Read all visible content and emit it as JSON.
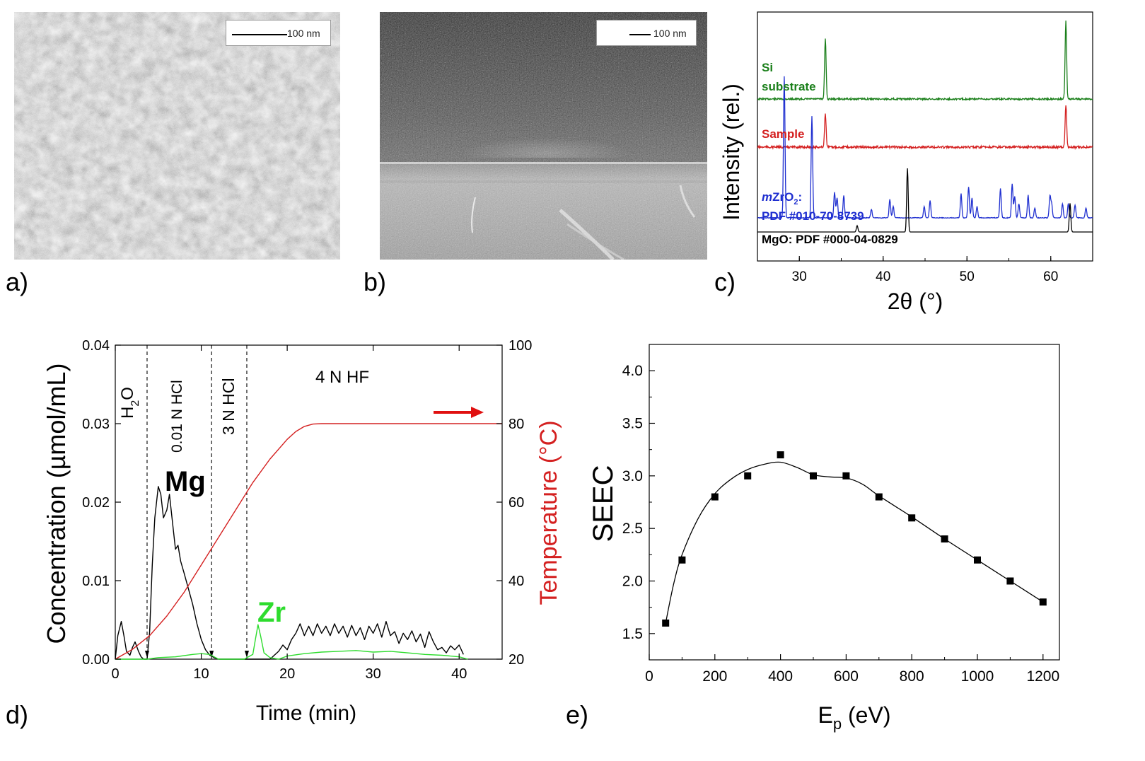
{
  "panels": {
    "a": {
      "label": "a)",
      "scale_bar": "100 nm"
    },
    "b": {
      "label": "b)",
      "scale_bar": "100 nm"
    },
    "c": {
      "label": "c)"
    },
    "d": {
      "label": "d)"
    },
    "e": {
      "label": "e)"
    }
  },
  "colors": {
    "green": "#1a7f1a",
    "red": "#d42020",
    "blue": "#1f2fd0",
    "black": "#000000",
    "zr_green": "#2edc2e"
  },
  "chart_data": [
    {
      "id": "xrd",
      "type": "line",
      "xlabel": "2θ (°)",
      "ylabel": "Intensity (rel.)",
      "xlim": [
        25,
        65
      ],
      "xticks": [
        30,
        40,
        50,
        60
      ],
      "series": [
        {
          "name": "Si substrate",
          "label_lines": [
            "Si",
            "substrate"
          ],
          "color": "#1a7f1a",
          "peaks": [
            {
              "x": 33.1,
              "h": 0.78
            },
            {
              "x": 61.8,
              "h": 1.0
            }
          ]
        },
        {
          "name": "Sample",
          "label_lines": [
            "Sample"
          ],
          "color": "#d42020",
          "peaks": [
            {
              "x": 33.1,
              "h": 0.6
            },
            {
              "x": 61.8,
              "h": 0.75
            }
          ]
        },
        {
          "name": "mZrO2: PDF #010-70-8739",
          "label_lines": [
            "mZrO2:",
            "PDF #010-70-8739"
          ],
          "color": "#1f2fd0",
          "peaks": [
            {
              "x": 28.2,
              "h": 1.0
            },
            {
              "x": 31.5,
              "h": 0.72
            },
            {
              "x": 34.2,
              "h": 0.18
            },
            {
              "x": 34.5,
              "h": 0.14
            },
            {
              "x": 35.3,
              "h": 0.16
            },
            {
              "x": 38.6,
              "h": 0.06
            },
            {
              "x": 40.8,
              "h": 0.13
            },
            {
              "x": 41.2,
              "h": 0.08
            },
            {
              "x": 44.9,
              "h": 0.08
            },
            {
              "x": 45.6,
              "h": 0.12
            },
            {
              "x": 49.3,
              "h": 0.17
            },
            {
              "x": 50.2,
              "h": 0.22
            },
            {
              "x": 50.6,
              "h": 0.14
            },
            {
              "x": 51.2,
              "h": 0.08
            },
            {
              "x": 54.0,
              "h": 0.21
            },
            {
              "x": 55.4,
              "h": 0.24
            },
            {
              "x": 55.7,
              "h": 0.15
            },
            {
              "x": 56.2,
              "h": 0.1
            },
            {
              "x": 57.3,
              "h": 0.16
            },
            {
              "x": 58.1,
              "h": 0.07
            },
            {
              "x": 59.9,
              "h": 0.15
            },
            {
              "x": 60.1,
              "h": 0.1
            },
            {
              "x": 61.4,
              "h": 0.1
            },
            {
              "x": 62.1,
              "h": 0.1
            },
            {
              "x": 62.9,
              "h": 0.09
            },
            {
              "x": 64.2,
              "h": 0.07
            }
          ]
        },
        {
          "name": "MgO: PDF #000-04-0829",
          "label_lines": [
            "MgO: PDF #000-04-0829"
          ],
          "color": "#000000",
          "peaks": [
            {
              "x": 36.9,
              "h": 0.1
            },
            {
              "x": 42.9,
              "h": 1.0
            },
            {
              "x": 62.3,
              "h": 0.45
            }
          ]
        }
      ]
    },
    {
      "id": "elution",
      "type": "line",
      "xlabel": "Time (min)",
      "ylabel": "Concentration (µmol/mL)",
      "y2label": "Temperature (°C)",
      "xlim": [
        0,
        45
      ],
      "ylim": [
        0,
        0.04
      ],
      "y2lim": [
        20,
        100
      ],
      "xticks": [
        0,
        10,
        20,
        30,
        40
      ],
      "yticks": [
        "0.00",
        "0.01",
        "0.02",
        "0.03",
        "0.04"
      ],
      "y2ticks": [
        20,
        40,
        60,
        80,
        100
      ],
      "stage_lines": [
        3.7,
        11.2,
        15.3
      ],
      "stage_labels": [
        "H2O",
        "0.01 N HCl",
        "3 N HCl",
        "4 N HF"
      ],
      "element_labels": {
        "mg": "Mg",
        "zr": "Zr"
      },
      "series": [
        {
          "name": "Mg",
          "color": "#000000",
          "x": [
            0,
            0.3,
            0.7,
            1.0,
            1.3,
            1.7,
            2.0,
            2.3,
            2.7,
            3.0,
            3.3,
            3.7,
            4.0,
            4.3,
            4.6,
            5.0,
            5.3,
            5.6,
            6.0,
            6.3,
            6.6,
            7.0,
            7.3,
            7.6,
            8.0,
            8.5,
            9.0,
            9.5,
            10.0,
            10.5,
            11.0,
            11.5,
            12.0,
            13.0,
            14.0,
            15.0,
            16.0,
            17.0,
            18.0,
            19.0,
            19.5,
            20.0,
            20.5,
            21.0,
            21.5,
            22.0,
            22.5,
            23.0,
            23.5,
            24.0,
            24.5,
            25.0,
            25.5,
            26.0,
            26.5,
            27.0,
            27.5,
            28.0,
            28.5,
            29.0,
            29.5,
            30.0,
            30.5,
            31.0,
            31.5,
            32.0,
            32.5,
            33.0,
            33.5,
            34.0,
            34.5,
            35.0,
            35.5,
            36.0,
            36.5,
            37.0,
            37.5,
            38.0,
            38.5,
            39.0,
            39.5,
            40.0,
            40.5
          ],
          "y": [
            0.0,
            0.003,
            0.0048,
            0.003,
            0.001,
            0.0005,
            0.0015,
            0.0022,
            0.001,
            0.0003,
            0.0,
            0.0,
            0.0035,
            0.012,
            0.018,
            0.022,
            0.021,
            0.018,
            0.019,
            0.021,
            0.018,
            0.014,
            0.0145,
            0.0125,
            0.011,
            0.009,
            0.007,
            0.0045,
            0.0025,
            0.0012,
            0.0005,
            0.0002,
            0.0,
            0.0,
            0.0,
            0.0,
            0.0,
            0.0,
            0.0,
            0.001,
            0.0018,
            0.0012,
            0.0025,
            0.0033,
            0.0045,
            0.003,
            0.0042,
            0.003,
            0.0045,
            0.0033,
            0.0042,
            0.003,
            0.0045,
            0.0033,
            0.0042,
            0.0028,
            0.0043,
            0.003,
            0.004,
            0.0025,
            0.0042,
            0.0033,
            0.0045,
            0.0028,
            0.0048,
            0.003,
            0.0035,
            0.002,
            0.0033,
            0.0025,
            0.0036,
            0.0022,
            0.0032,
            0.0015,
            0.0035,
            0.0022,
            0.0012,
            0.0015,
            0.0008,
            0.0017,
            0.0012,
            0.0018,
            0.0006
          ]
        },
        {
          "name": "Zr",
          "color": "#2edc2e",
          "x": [
            0,
            3.7,
            5.0,
            7.0,
            9.0,
            10.0,
            11.0,
            11.5,
            12.0,
            15.0,
            16.0,
            16.3,
            16.6,
            16.9,
            17.3,
            18.0,
            19.0,
            20.0,
            22.0,
            24.0,
            26.0,
            28.0,
            30.0,
            32.0,
            34.0,
            36.0,
            38.0,
            40.0,
            41.0
          ],
          "y": [
            0,
            0.0,
            0.0002,
            0.0003,
            0.0006,
            0.0007,
            0.0006,
            0.0003,
            0.0,
            0.0,
            0.0006,
            0.0025,
            0.0044,
            0.003,
            0.0008,
            0.0002,
            0.0,
            0.0004,
            0.0007,
            0.0009,
            0.001,
            0.0011,
            0.0009,
            0.001,
            0.0008,
            0.0006,
            0.0005,
            0.0003,
            0.0
          ]
        },
        {
          "name": "Temperature",
          "axis": "right",
          "color": "#d42020",
          "x": [
            0,
            2,
            4,
            6,
            8,
            10,
            12,
            14,
            16,
            18,
            20,
            21,
            22,
            23,
            24,
            26,
            30,
            35,
            40,
            45
          ],
          "y": [
            20,
            22.5,
            26,
            31,
            37,
            44,
            51,
            58,
            65,
            71,
            76,
            78,
            79.3,
            79.9,
            80,
            80,
            80,
            80,
            80,
            80
          ]
        }
      ]
    },
    {
      "id": "seec",
      "type": "scatter",
      "xlabel": "Ep (eV)",
      "ylabel": "SEEC",
      "xlim": [
        0,
        1250
      ],
      "ylim": [
        1.25,
        4.25
      ],
      "xticks": [
        0,
        200,
        400,
        600,
        800,
        1000,
        1200
      ],
      "yticks": [
        "1.5",
        "2.0",
        "2.5",
        "3.0",
        "3.5",
        "4.0"
      ],
      "series": [
        {
          "name": "SEEC",
          "color": "#000000",
          "x": [
            50,
            100,
            200,
            300,
            400,
            500,
            600,
            700,
            800,
            900,
            1000,
            1100,
            1200
          ],
          "y": [
            1.6,
            2.2,
            2.8,
            3.0,
            3.2,
            3.0,
            3.0,
            2.8,
            2.6,
            2.4,
            2.2,
            2.0,
            1.8
          ]
        },
        {
          "name": "fit",
          "color": "#000000",
          "x": [
            50,
            75,
            100,
            150,
            200,
            250,
            300,
            350,
            400,
            450,
            500,
            550,
            600,
            650,
            700,
            800,
            900,
            1000,
            1100,
            1200
          ],
          "y": [
            1.6,
            1.98,
            2.25,
            2.6,
            2.83,
            2.97,
            3.06,
            3.11,
            3.13,
            3.08,
            3.01,
            2.99,
            2.98,
            2.92,
            2.81,
            2.61,
            2.4,
            2.2,
            2.0,
            1.8
          ]
        }
      ]
    }
  ]
}
